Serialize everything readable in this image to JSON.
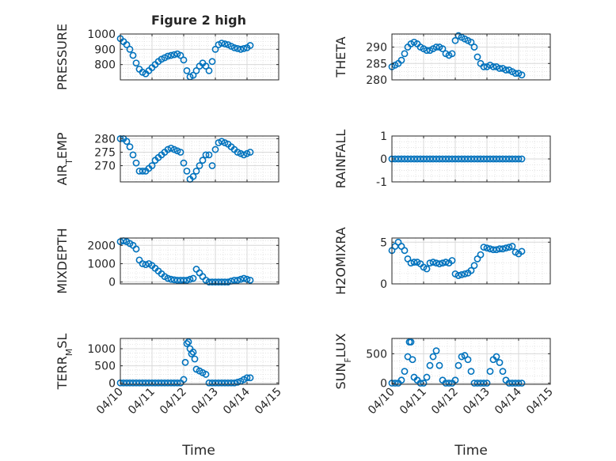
{
  "figure": {
    "title": "Figure 2 high",
    "xlabel": "Time"
  },
  "colors": {
    "marker": "#0072BD",
    "axis": "#262626",
    "grid": "#d9d9d9"
  },
  "chart_data": [
    {
      "type": "scatter",
      "ylabel": "PRESSURE",
      "title": "Figure 2 high",
      "xticks": [
        "04/10",
        "04/11",
        "04/12",
        "04/13",
        "04/14",
        "04/15"
      ],
      "xlim": [
        0,
        5
      ],
      "ylim": [
        700,
        1000
      ],
      "yticks": [
        800,
        900,
        1000
      ],
      "grid": true,
      "x": [
        0,
        0.1,
        0.2,
        0.3,
        0.4,
        0.5,
        0.6,
        0.7,
        0.8,
        0.9,
        1.0,
        1.1,
        1.2,
        1.3,
        1.4,
        1.5,
        1.6,
        1.7,
        1.8,
        1.9,
        2.0,
        2.1,
        2.2,
        2.3,
        2.4,
        2.5,
        2.6,
        2.7,
        2.8,
        2.9,
        3.0,
        3.1,
        3.2,
        3.3,
        3.4,
        3.5,
        3.6,
        3.7,
        3.8,
        3.9,
        4.0,
        4.1
      ],
      "y": [
        970,
        950,
        930,
        900,
        860,
        810,
        770,
        750,
        740,
        760,
        780,
        800,
        820,
        835,
        845,
        855,
        860,
        865,
        870,
        860,
        830,
        760,
        720,
        730,
        760,
        790,
        810,
        790,
        760,
        820,
        900,
        930,
        940,
        935,
        930,
        920,
        910,
        905,
        900,
        905,
        910,
        925
      ]
    },
    {
      "type": "scatter",
      "ylabel": "THETA",
      "xticks": [
        "04/10",
        "04/11",
        "04/12",
        "04/13",
        "04/14",
        "04/15"
      ],
      "xlim": [
        0,
        5
      ],
      "ylim": [
        280,
        294
      ],
      "yticks": [
        280,
        285,
        290
      ],
      "grid": true,
      "x": [
        0,
        0.1,
        0.2,
        0.3,
        0.4,
        0.5,
        0.6,
        0.7,
        0.8,
        0.9,
        1.0,
        1.1,
        1.2,
        1.3,
        1.4,
        1.5,
        1.6,
        1.7,
        1.8,
        1.9,
        2.0,
        2.1,
        2.2,
        2.3,
        2.4,
        2.5,
        2.6,
        2.7,
        2.8,
        2.9,
        3.0,
        3.1,
        3.2,
        3.3,
        3.4,
        3.5,
        3.6,
        3.7,
        3.8,
        3.9,
        4.0,
        4.1
      ],
      "y": [
        284,
        284.5,
        285,
        286,
        288,
        290,
        291,
        291.5,
        291,
        290,
        289.5,
        289,
        289,
        289.5,
        290,
        290,
        289.5,
        288,
        287.5,
        288,
        292,
        293.5,
        293,
        292.5,
        292,
        291.5,
        290,
        287,
        285,
        284,
        284,
        284.5,
        284,
        284,
        283.5,
        283.5,
        283,
        283,
        282.5,
        282,
        282,
        281.5
      ]
    },
    {
      "type": "scatter",
      "ylabel": "AIR_TEMP",
      "xticks": [
        "04/10",
        "04/11",
        "04/12",
        "04/13",
        "04/14",
        "04/15"
      ],
      "xlim": [
        0,
        5
      ],
      "ylim": [
        264,
        281
      ],
      "yticks": [
        270,
        275,
        280
      ],
      "grid": true,
      "x": [
        0,
        0.1,
        0.2,
        0.3,
        0.4,
        0.5,
        0.6,
        0.7,
        0.8,
        0.9,
        1.0,
        1.1,
        1.2,
        1.3,
        1.4,
        1.5,
        1.6,
        1.7,
        1.8,
        1.9,
        2.0,
        2.1,
        2.2,
        2.3,
        2.4,
        2.5,
        2.6,
        2.7,
        2.8,
        2.9,
        3.0,
        3.1,
        3.2,
        3.3,
        3.4,
        3.5,
        3.6,
        3.7,
        3.8,
        3.9,
        4.0,
        4.1
      ],
      "y": [
        280,
        280,
        279,
        277,
        274,
        271,
        268,
        268,
        268,
        269,
        270,
        272,
        273,
        274,
        275,
        276,
        276.5,
        276,
        275.5,
        275,
        271,
        268,
        265,
        266,
        268,
        270,
        272,
        274,
        274,
        270,
        276,
        278.5,
        279,
        278.5,
        278,
        277,
        276,
        275,
        274.5,
        274,
        274.5,
        275
      ]
    },
    {
      "type": "scatter",
      "ylabel": "RAINFALL",
      "xticks": [
        "04/10",
        "04/11",
        "04/12",
        "04/13",
        "04/14",
        "04/15"
      ],
      "xlim": [
        0,
        5
      ],
      "ylim": [
        -1,
        1
      ],
      "yticks": [
        -1,
        0,
        1
      ],
      "grid": true,
      "x": [
        0,
        0.1,
        0.2,
        0.3,
        0.4,
        0.5,
        0.6,
        0.7,
        0.8,
        0.9,
        1.0,
        1.1,
        1.2,
        1.3,
        1.4,
        1.5,
        1.6,
        1.7,
        1.8,
        1.9,
        2.0,
        2.1,
        2.2,
        2.3,
        2.4,
        2.5,
        2.6,
        2.7,
        2.8,
        2.9,
        3.0,
        3.1,
        3.2,
        3.3,
        3.4,
        3.5,
        3.6,
        3.7,
        3.8,
        3.9,
        4.0,
        4.1
      ],
      "y": [
        0,
        0,
        0,
        0,
        0,
        0,
        0,
        0,
        0,
        0,
        0,
        0,
        0,
        0,
        0,
        0,
        0,
        0,
        0,
        0,
        0,
        0,
        0,
        0,
        0,
        0,
        0,
        0,
        0,
        0,
        0,
        0,
        0,
        0,
        0,
        0,
        0,
        0,
        0,
        0,
        0,
        0
      ]
    },
    {
      "type": "scatter",
      "ylabel": "MIXDEPTH",
      "xticks": [
        "04/10",
        "04/11",
        "04/12",
        "04/13",
        "04/14",
        "04/15"
      ],
      "xlim": [
        0,
        5
      ],
      "ylim": [
        -100,
        2400
      ],
      "yticks": [
        0,
        1000,
        2000
      ],
      "grid": true,
      "x": [
        0,
        0.1,
        0.2,
        0.3,
        0.4,
        0.5,
        0.6,
        0.7,
        0.8,
        0.9,
        1.0,
        1.1,
        1.2,
        1.3,
        1.4,
        1.5,
        1.6,
        1.7,
        1.8,
        1.9,
        2.0,
        2.1,
        2.2,
        2.3,
        2.4,
        2.5,
        2.6,
        2.7,
        2.8,
        2.9,
        3.0,
        3.1,
        3.2,
        3.3,
        3.4,
        3.5,
        3.6,
        3.7,
        3.8,
        3.9,
        4.0,
        4.1
      ],
      "y": [
        2200,
        2250,
        2200,
        2100,
        2000,
        1800,
        1200,
        1000,
        950,
        1000,
        900,
        750,
        600,
        450,
        300,
        200,
        150,
        120,
        100,
        100,
        100,
        100,
        150,
        200,
        700,
        500,
        300,
        100,
        0,
        0,
        0,
        0,
        0,
        0,
        0,
        50,
        100,
        100,
        150,
        200,
        150,
        100
      ]
    },
    {
      "type": "scatter",
      "ylabel": "H2OMIXRA",
      "xticks": [
        "04/10",
        "04/11",
        "04/12",
        "04/13",
        "04/14",
        "04/15"
      ],
      "xlim": [
        0,
        5
      ],
      "ylim": [
        0,
        5.5
      ],
      "yticks": [
        0,
        5
      ],
      "grid": true,
      "x": [
        0,
        0.1,
        0.2,
        0.3,
        0.4,
        0.5,
        0.6,
        0.7,
        0.8,
        0.9,
        1.0,
        1.1,
        1.2,
        1.3,
        1.4,
        1.5,
        1.6,
        1.7,
        1.8,
        1.9,
        2.0,
        2.1,
        2.2,
        2.3,
        2.4,
        2.5,
        2.6,
        2.7,
        2.8,
        2.9,
        3.0,
        3.1,
        3.2,
        3.3,
        3.4,
        3.5,
        3.6,
        3.7,
        3.8,
        3.9,
        4.0,
        4.1
      ],
      "y": [
        4,
        4.5,
        5,
        4.5,
        4,
        3,
        2.5,
        2.6,
        2.6,
        2.4,
        2.0,
        1.8,
        2.5,
        2.6,
        2.5,
        2.4,
        2.5,
        2.6,
        2.5,
        2.8,
        1.2,
        1.0,
        1.1,
        1.2,
        1.3,
        1.6,
        2.2,
        3.0,
        3.5,
        4.4,
        4.3,
        4.2,
        4.1,
        4.1,
        4.2,
        4.2,
        4.3,
        4.4,
        4.5,
        3.8,
        3.6,
        3.9
      ]
    },
    {
      "type": "scatter",
      "ylabel": "TERR_MSL",
      "xticks": [
        "04/10",
        "04/11",
        "04/12",
        "04/13",
        "04/14",
        "04/15"
      ],
      "xlim": [
        0,
        5
      ],
      "ylim": [
        -40,
        1300
      ],
      "yticks": [
        0,
        500,
        1000
      ],
      "grid": true,
      "x": [
        0,
        0.1,
        0.2,
        0.3,
        0.4,
        0.5,
        0.6,
        0.7,
        0.8,
        0.9,
        1.0,
        1.1,
        1.2,
        1.3,
        1.4,
        1.5,
        1.6,
        1.7,
        1.8,
        1.9,
        2.0,
        2.05,
        2.1,
        2.15,
        2.2,
        2.25,
        2.3,
        2.35,
        2.4,
        2.5,
        2.6,
        2.7,
        2.8,
        2.9,
        3.0,
        3.1,
        3.2,
        3.3,
        3.4,
        3.5,
        3.6,
        3.7,
        3.8,
        3.9,
        4.0,
        4.1
      ],
      "y": [
        0,
        0,
        0,
        0,
        0,
        0,
        0,
        0,
        0,
        0,
        0,
        0,
        0,
        0,
        0,
        0,
        0,
        0,
        0,
        0,
        100,
        600,
        1150,
        1200,
        1000,
        850,
        900,
        700,
        400,
        350,
        300,
        250,
        0,
        0,
        0,
        0,
        0,
        0,
        0,
        0,
        0,
        20,
        50,
        100,
        150,
        150
      ]
    },
    {
      "type": "scatter",
      "ylabel": "SUN_FLUX",
      "xticks": [
        "04/10",
        "04/11",
        "04/12",
        "04/13",
        "04/14",
        "04/15"
      ],
      "xlim": [
        0,
        5
      ],
      "ylim": [
        -20,
        760
      ],
      "yticks": [
        0,
        500
      ],
      "grid": true,
      "x": [
        0,
        0.1,
        0.2,
        0.3,
        0.4,
        0.5,
        0.55,
        0.6,
        0.65,
        0.7,
        0.8,
        0.9,
        1.0,
        1.1,
        1.2,
        1.3,
        1.4,
        1.5,
        1.6,
        1.7,
        1.8,
        1.9,
        2.0,
        2.1,
        2.2,
        2.3,
        2.4,
        2.5,
        2.6,
        2.7,
        2.8,
        2.9,
        3.0,
        3.1,
        3.2,
        3.3,
        3.4,
        3.5,
        3.6,
        3.7,
        3.8,
        3.9,
        4.0,
        4.1
      ],
      "y": [
        0,
        0,
        0,
        50,
        200,
        450,
        700,
        700,
        400,
        100,
        50,
        0,
        0,
        100,
        300,
        450,
        550,
        300,
        50,
        0,
        0,
        0,
        50,
        300,
        450,
        470,
        400,
        200,
        0,
        0,
        0,
        0,
        0,
        200,
        400,
        450,
        350,
        200,
        50,
        0,
        0,
        0,
        0,
        0
      ]
    }
  ]
}
